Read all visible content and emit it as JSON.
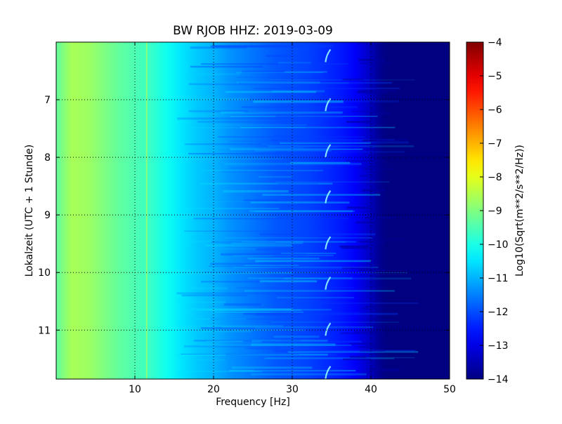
{
  "chart_data": {
    "type": "heatmap",
    "title": "BW RJOB HHZ: 2019-03-09",
    "xlabel": "Frequency [Hz]",
    "ylabel": "Lokalzeit (UTC + 1 Stunde)",
    "xlim": [
      0,
      50
    ],
    "ylim_top_to_bottom": [
      6.0,
      11.85
    ],
    "x_ticks": [
      10,
      20,
      30,
      40,
      50
    ],
    "y_ticks": [
      7,
      8,
      9,
      10,
      11
    ],
    "grid": true,
    "colorscale": "jet",
    "colorbar": {
      "label": "Log10(Sqrt(m**2/s**2/Hz))",
      "range": [
        -14,
        -4
      ],
      "ticks": [
        -4,
        -5,
        -6,
        -7,
        -8,
        -9,
        -10,
        -11,
        -12,
        -13,
        -14
      ]
    },
    "spectral_profile": {
      "frequency_hz": [
        0,
        2,
        4,
        6,
        8,
        10,
        12,
        14,
        16,
        18,
        20,
        22,
        24,
        26,
        28,
        30,
        32,
        34,
        36,
        38,
        40,
        41,
        42,
        45,
        50
      ],
      "log10_psd": [
        -9.3,
        -8.6,
        -8.7,
        -9.0,
        -9.3,
        -9.5,
        -9.7,
        -10.1,
        -10.5,
        -10.8,
        -11.0,
        -11.3,
        -11.5,
        -11.7,
        -11.9,
        -12.0,
        -12.1,
        -12.3,
        -12.5,
        -12.8,
        -13.4,
        -13.8,
        -14.0,
        -14.0,
        -14.0
      ]
    },
    "features": [
      {
        "type": "periodic_tone",
        "frequency_hz": 34.5,
        "hours": [
          6.25,
          7.1,
          7.9,
          8.7,
          9.5,
          10.2,
          11.0,
          11.75
        ]
      },
      {
        "type": "narrow_line",
        "frequency_hz": 11.5
      }
    ]
  }
}
